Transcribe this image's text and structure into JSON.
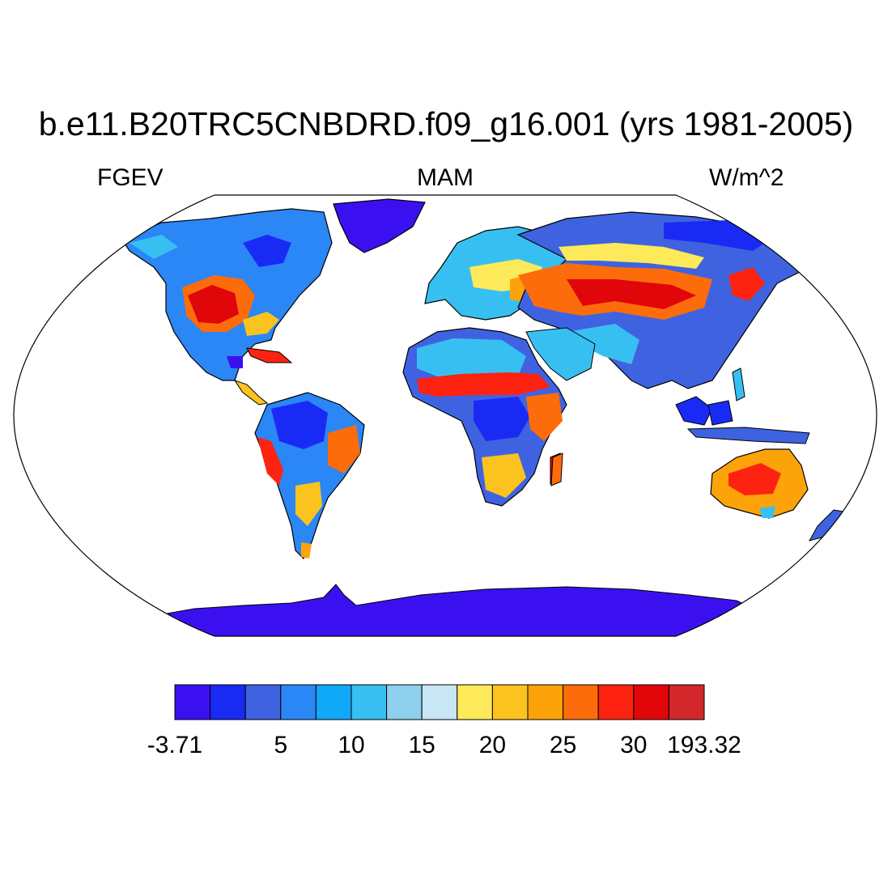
{
  "title": "b.e11.B20TRC5CNBDRD.f09_g16.001 (yrs 1981-2005)",
  "left_label": "FGEV",
  "center_label": "MAM",
  "right_label": "W/m^2",
  "projection": "Robinson",
  "colorbar": {
    "colors": [
      "#3b10f0",
      "#1a2af5",
      "#3f63e0",
      "#2b86f6",
      "#10a8f8",
      "#38bff2",
      "#8ecfee",
      "#c8e6f4",
      "#fde95a",
      "#fcc31e",
      "#fca30a",
      "#fd6c0a",
      "#fe2210",
      "#e0060a",
      "#d3282b"
    ],
    "labels": [
      {
        "text": "-3.71",
        "boundary": 0
      },
      {
        "text": "5",
        "boundary": 3
      },
      {
        "text": "10",
        "boundary": 5
      },
      {
        "text": "15",
        "boundary": 7
      },
      {
        "text": "20",
        "boundary": 9
      },
      {
        "text": "25",
        "boundary": 11
      },
      {
        "text": "30",
        "boundary": 13
      },
      {
        "text": "193.32",
        "boundary": 15
      }
    ]
  }
}
